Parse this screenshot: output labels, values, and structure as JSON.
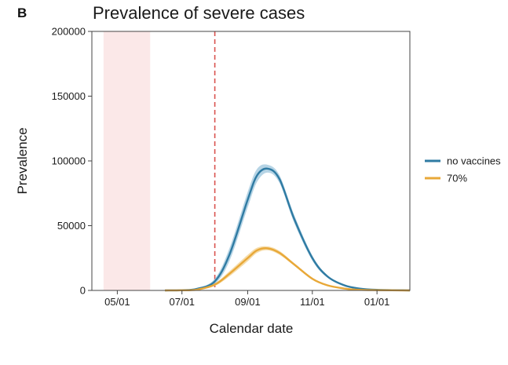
{
  "panel_label": "B",
  "chart_data": {
    "type": "line",
    "title": "Prevalence of severe cases",
    "xlabel": "Calendar date",
    "ylabel": "Prevalence",
    "x_tick_labels": [
      "05/01",
      "07/01",
      "09/01",
      "11/01",
      "01/01"
    ],
    "y_tick_labels": [
      "0",
      "50000",
      "100000",
      "150000",
      "200000"
    ],
    "ylim": [
      0,
      200000
    ],
    "x_axis_type": "date",
    "xlim": [
      "2021-04-07",
      "2022-02-01"
    ],
    "x_tick_dates": [
      "2021-05-01",
      "2021-07-01",
      "2021-09-01",
      "2021-11-01",
      "2022-01-01"
    ],
    "shaded_period": [
      "2021-04-18",
      "2021-06-01"
    ],
    "shaded_color": "#fbe8e8",
    "vline_date": "2021-08-01",
    "vline_color": "#d9534f",
    "grid": false,
    "legend_position": "right",
    "series": [
      {
        "name": "no vaccines",
        "color": "#2f7ba3",
        "band_color": "#9ec6dc",
        "x": [
          "2021-06-15",
          "2021-07-01",
          "2021-07-15",
          "2021-08-01",
          "2021-08-15",
          "2021-09-01",
          "2021-09-10",
          "2021-09-20",
          "2021-10-01",
          "2021-10-15",
          "2021-11-01",
          "2021-11-15",
          "2021-12-01",
          "2021-12-15",
          "2022-01-01",
          "2022-02-01"
        ],
        "values": [
          0,
          200,
          1200,
          7000,
          28000,
          70000,
          89000,
          94000,
          86000,
          55000,
          25000,
          11000,
          4000,
          1500,
          500,
          0
        ],
        "band": [
          0,
          300,
          1500,
          9000,
          33000,
          76000,
          94000,
          97000,
          89000,
          58000,
          27000,
          12000,
          4500,
          1700,
          600,
          0
        ]
      },
      {
        "name": "70%",
        "color": "#e8a838",
        "band_color": "#f3d08c",
        "x": [
          "2021-06-15",
          "2021-07-01",
          "2021-07-15",
          "2021-08-01",
          "2021-08-15",
          "2021-09-01",
          "2021-09-10",
          "2021-09-20",
          "2021-10-01",
          "2021-10-15",
          "2021-11-01",
          "2021-11-15",
          "2021-12-01",
          "2021-12-15",
          "2022-01-01",
          "2022-02-01"
        ],
        "values": [
          0,
          100,
          600,
          4500,
          13000,
          25000,
          31000,
          32500,
          29000,
          20000,
          9000,
          4000,
          1500,
          500,
          200,
          0
        ],
        "band": [
          0,
          150,
          800,
          5500,
          15000,
          27500,
          33000,
          34000,
          30500,
          21000,
          9800,
          4400,
          1700,
          600,
          250,
          0
        ]
      }
    ]
  }
}
